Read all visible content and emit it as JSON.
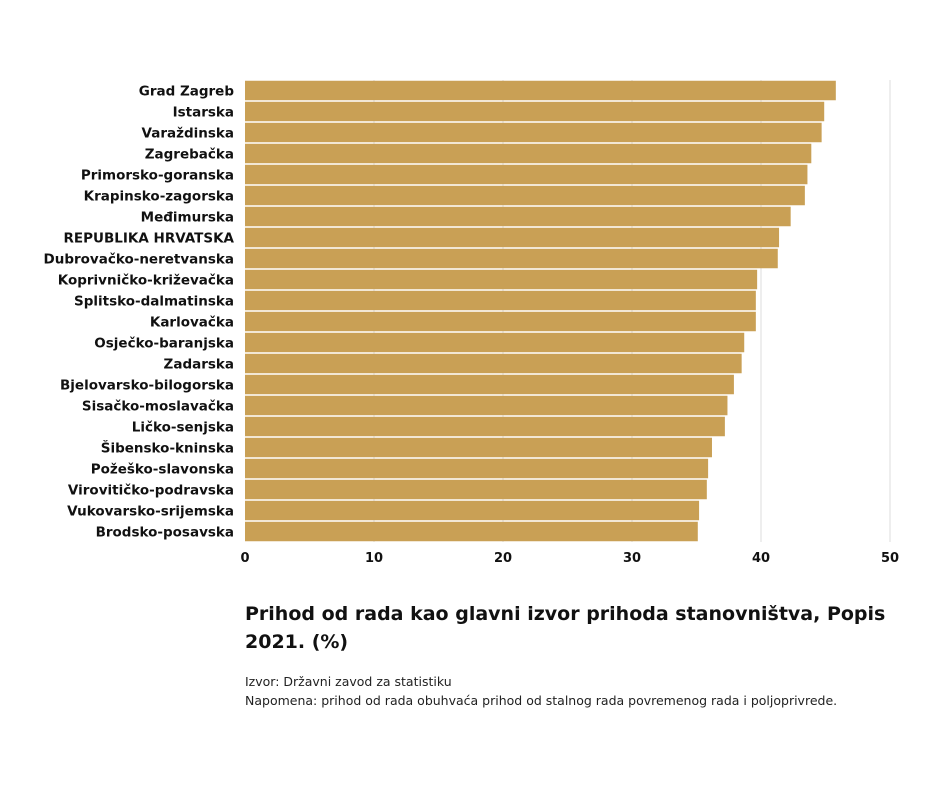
{
  "chart_data": {
    "type": "bar",
    "orientation": "horizontal",
    "categories": [
      "Grad Zagreb",
      "Istarska",
      "Varaždinska",
      "Zagrebačka",
      "Primorsko-goranska",
      "Krapinsko-zagorska",
      "Međimurska",
      "REPUBLIKA HRVATSKA",
      "Dubrovačko-neretvanska",
      "Koprivničko-križevačka",
      "Splitsko-dalmatinska",
      "Karlovačka",
      "Osječko-baranjska",
      "Zadarska",
      "Bjelovarsko-bilogorska",
      "Sisačko-moslavačka",
      "Ličko-senjska",
      "Šibensko-kninska",
      "Požeško-slavonska",
      "Virovitičko-podravska",
      "Vukovarsko-srijemska",
      "Brodsko-posavska"
    ],
    "values": [
      45.8,
      44.9,
      44.7,
      43.9,
      43.6,
      43.4,
      42.3,
      41.4,
      41.3,
      39.7,
      39.6,
      39.6,
      38.7,
      38.5,
      37.9,
      37.4,
      37.2,
      36.2,
      35.9,
      35.8,
      35.2,
      35.1
    ],
    "ticks": [
      "0",
      "10",
      "20",
      "30",
      "40",
      "50"
    ],
    "xlim": [
      0,
      50
    ],
    "grid": "vertical",
    "bar_color": "#c9a055",
    "grid_color": "#dddddd",
    "title": "Prihod od rada kao glavni izvor prihoda stanovništva, Popis 2021. (%)",
    "xlabel": "",
    "ylabel": ""
  },
  "source": "Izvor: Državni zavod za statistiku",
  "note": "Napomena: prihod od rada obuhvaća prihod od stalnog rada povremenog rada i poljoprivrede."
}
